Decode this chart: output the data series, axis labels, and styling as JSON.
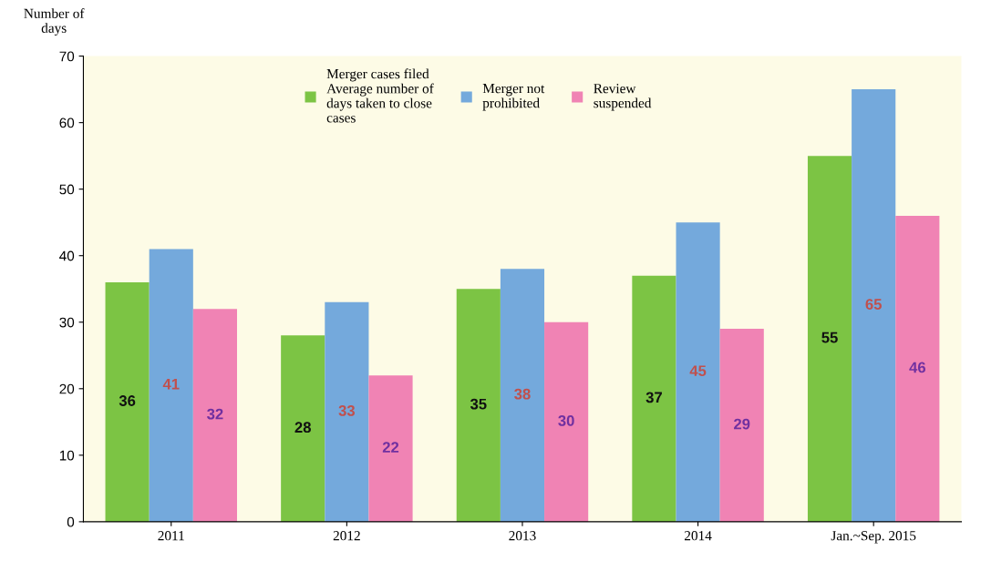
{
  "chart_data": {
    "type": "bar",
    "ylabel": "Number of\ndays",
    "categories": [
      "2011",
      "2012",
      "2013",
      "2014",
      "Jan.~Sep. 2015"
    ],
    "series": [
      {
        "name": "Merger cases filed\nAverage number of\ndays taken to close\ncases",
        "color": "#7cc444",
        "values": [
          36,
          28,
          35,
          37,
          55
        ]
      },
      {
        "name": "Merger not\nprohibited",
        "color": "#74a9dc",
        "values": [
          41,
          33,
          38,
          45,
          65
        ]
      },
      {
        "name": "Review\nsuspended",
        "color": "#f083b4",
        "values": [
          32,
          22,
          30,
          29,
          46
        ]
      }
    ],
    "ylim": [
      0,
      70
    ],
    "yticks": [
      0,
      10,
      20,
      30,
      40,
      50,
      60,
      70
    ],
    "data_labels": true,
    "legend": "top",
    "grid": false
  }
}
